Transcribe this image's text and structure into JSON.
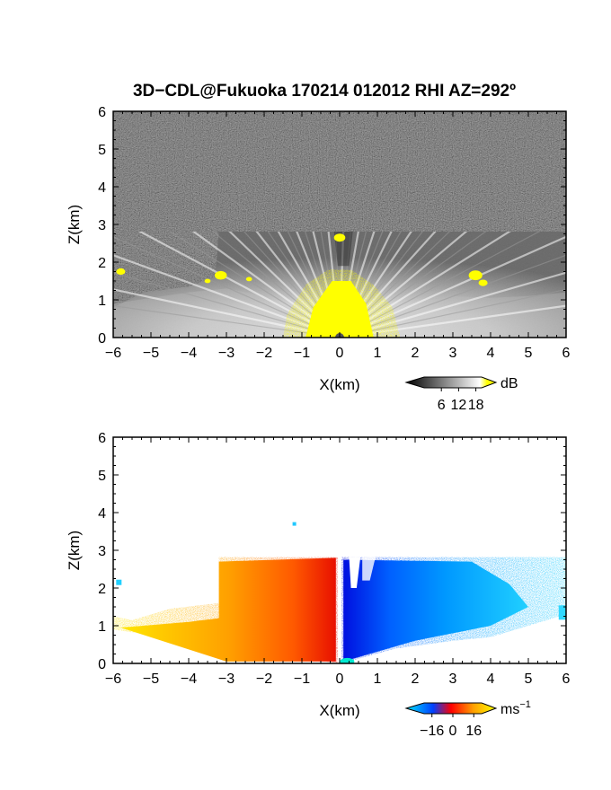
{
  "title": "3D−CDL@Fukuoka 170214 012012 RHI AZ=292º",
  "chart_data": [
    {
      "type": "heatmap",
      "quantity": "SNR",
      "xlabel": "X(km)",
      "ylabel": "Z(km)",
      "xlim": [
        -6,
        6
      ],
      "ylim": [
        0,
        6
      ],
      "x_ticks": [
        "−6",
        "−5",
        "−4",
        "−3",
        "−2",
        "−1",
        "0",
        "1",
        "2",
        "3",
        "4",
        "5",
        "6"
      ],
      "y_ticks": [
        "0",
        "1",
        "2",
        "3",
        "4",
        "5",
        "6"
      ],
      "colorbar": {
        "unit": "dB",
        "ticks": [
          "6",
          "12",
          "18"
        ],
        "tick_values": [
          6,
          12,
          18
        ],
        "range": [
          0,
          20
        ],
        "colors": [
          "#000000",
          "#ffffff",
          "#ffff00"
        ]
      },
      "features": {
        "echo_top_km": 2.8,
        "scan": "RHI"
      }
    },
    {
      "type": "heatmap",
      "quantity": "Doppler velocity",
      "xlabel": "X(km)",
      "ylabel": "Z(km)",
      "xlim": [
        -6,
        6
      ],
      "ylim": [
        0,
        6
      ],
      "x_ticks": [
        "−6",
        "−5",
        "−4",
        "−3",
        "−2",
        "−1",
        "0",
        "1",
        "2",
        "3",
        "4",
        "5",
        "6"
      ],
      "y_ticks": [
        "0",
        "1",
        "2",
        "3",
        "4",
        "5",
        "6"
      ],
      "colorbar": {
        "unit": "ms",
        "unit_superscript": "−1",
        "ticks": [
          "−16",
          "0",
          "16"
        ],
        "tick_values": [
          -16,
          0,
          16
        ],
        "range": [
          -22,
          22
        ],
        "colors": [
          "#00e5ff",
          "#0040ff",
          "#ff0000",
          "#ffa000",
          "#ffff00"
        ]
      },
      "features": {
        "echo_top_km": 2.8,
        "scan": "RHI"
      }
    }
  ]
}
